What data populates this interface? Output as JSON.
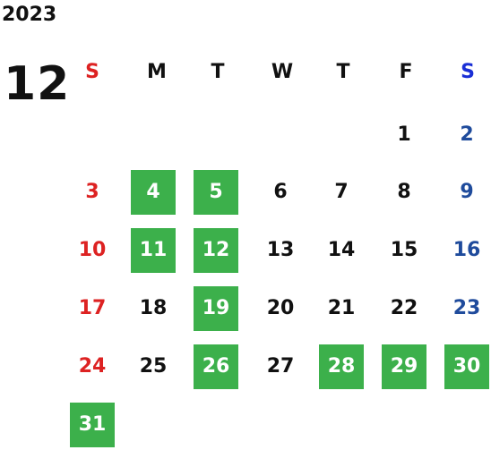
{
  "calendar": {
    "year": "2023",
    "month": "12",
    "weekday_headers": [
      "S",
      "M",
      "T",
      "W",
      "T",
      "F",
      "S"
    ],
    "colors": {
      "sunday": "#dd2222",
      "saturday_header": "#1a2fd6",
      "saturday": "#1f4b9c",
      "weekday": "#111111",
      "highlight_bg": "#3cb04b",
      "highlight_text": "#ffffff"
    },
    "weeks": [
      [
        null,
        null,
        null,
        null,
        null,
        "1",
        "2"
      ],
      [
        "3",
        "4",
        "5",
        "6",
        "7",
        "8",
        "9"
      ],
      [
        "10",
        "11",
        "12",
        "13",
        "14",
        "15",
        "16"
      ],
      [
        "17",
        "18",
        "19",
        "20",
        "21",
        "22",
        "23"
      ],
      [
        "24",
        "25",
        "26",
        "27",
        "28",
        "29",
        "30"
      ],
      [
        "31",
        null,
        null,
        null,
        null,
        null,
        null
      ]
    ],
    "highlighted_days": [
      "4",
      "5",
      "11",
      "12",
      "19",
      "26",
      "28",
      "29",
      "30",
      "31"
    ]
  }
}
